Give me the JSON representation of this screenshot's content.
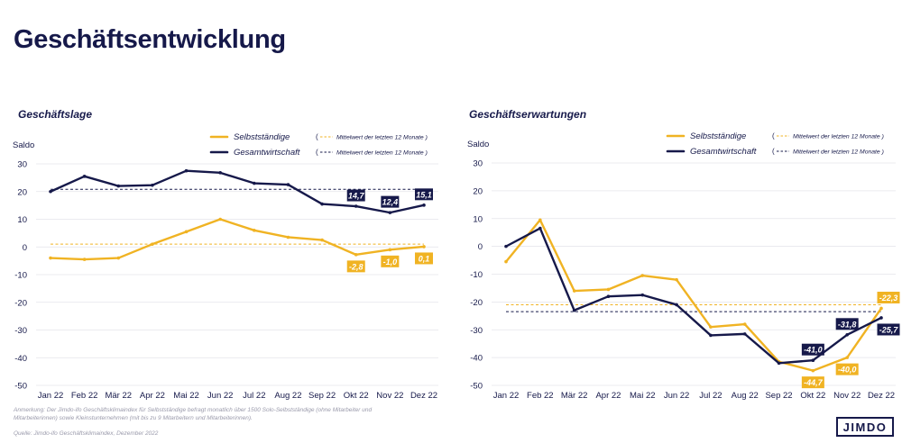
{
  "page": {
    "title": "Geschäftsentwicklung",
    "note": "Anmerkung: Der Jimdo-ifo Geschäftsklimaindex für Selbstständige befragt monatlich über 1500 Solo-Selbstständige (ohne Mitarbeiter und Mitarbeiterinnen) sowie Kleinstunternehmen (mit bis zu 9 Mitarbeitern und Mitarbeiterinnen).",
    "source": "Quelle: Jimdo-ifo Geschäftsklimaindex, Dezember 2022",
    "logo": "JIMDO"
  },
  "colors": {
    "navy": "#16194a",
    "gold": "#f0b323",
    "grid": "#e4e4ea"
  },
  "chart_data": [
    {
      "type": "line",
      "title": "Geschäftslage",
      "ylabel": "Saldo",
      "categories": [
        "Jan 22",
        "Feb 22",
        "Mär 22",
        "Apr 22",
        "Mai 22",
        "Jun 22",
        "Jul 22",
        "Aug 22",
        "Sep 22",
        "Okt 22",
        "Nov 22",
        "Dez 22"
      ],
      "yticks": [
        "30",
        "20",
        "10",
        "0",
        "-10",
        "-20",
        "-30",
        "-40",
        "-50"
      ],
      "ylim": [
        -50,
        30
      ],
      "grid": true,
      "legend_position": "top-right",
      "legend_mean_label": "Mittelwert der letzten 12 Monate",
      "series": [
        {
          "name": "Selbstständige",
          "color": "#f0b323",
          "values": [
            -4.0,
            -4.5,
            -4.0,
            1.0,
            5.5,
            10.0,
            6.0,
            3.5,
            2.5,
            -2.8,
            -1.0,
            0.1
          ],
          "mean": 1.0,
          "labels": [
            {
              "index": 9,
              "text": "-2,8"
            },
            {
              "index": 10,
              "text": "-1,0"
            },
            {
              "index": 11,
              "text": "0,1"
            }
          ]
        },
        {
          "name": "Gesamtwirtschaft",
          "color": "#16194a",
          "values": [
            20.0,
            25.5,
            22.0,
            22.3,
            27.5,
            26.8,
            23.0,
            22.5,
            15.5,
            14.7,
            12.4,
            15.1
          ],
          "mean": 20.8,
          "labels": [
            {
              "index": 9,
              "text": "14,7"
            },
            {
              "index": 10,
              "text": "12,4"
            },
            {
              "index": 11,
              "text": "15,1"
            }
          ]
        }
      ]
    },
    {
      "type": "line",
      "title": "Geschäftserwartungen",
      "ylabel": "Saldo",
      "categories": [
        "Jan 22",
        "Feb 22",
        "Mär 22",
        "Apr 22",
        "Mai 22",
        "Jun 22",
        "Jul 22",
        "Aug 22",
        "Sep 22",
        "Okt 22",
        "Nov 22",
        "Dez 22"
      ],
      "yticks": [
        "30",
        "20",
        "10",
        "0",
        "-10",
        "-20",
        "-30",
        "-40",
        "-50"
      ],
      "ylim": [
        -50,
        30
      ],
      "grid": true,
      "legend_position": "top-right",
      "legend_mean_label": "Mittelwert der letzten 12 Monate",
      "series": [
        {
          "name": "Selbstständige",
          "color": "#f0b323",
          "values": [
            -5.5,
            9.5,
            -16.0,
            -15.5,
            -10.5,
            -12.0,
            -29.0,
            -28.0,
            -41.5,
            -44.7,
            -40.0,
            -22.3
          ],
          "mean": -21.0,
          "labels": [
            {
              "index": 9,
              "text": "-44,7"
            },
            {
              "index": 10,
              "text": "-40,0"
            },
            {
              "index": 11,
              "text": "-22,3"
            }
          ]
        },
        {
          "name": "Gesamtwirtschaft",
          "color": "#16194a",
          "values": [
            0.0,
            6.5,
            -23.0,
            -18.0,
            -17.5,
            -21.0,
            -32.0,
            -31.5,
            -42.0,
            -41.0,
            -31.8,
            -25.7
          ],
          "mean": -23.5,
          "labels": [
            {
              "index": 9,
              "text": "-41,0"
            },
            {
              "index": 10,
              "text": "-31,8"
            },
            {
              "index": 11,
              "text": "-25,7"
            }
          ]
        }
      ]
    }
  ]
}
